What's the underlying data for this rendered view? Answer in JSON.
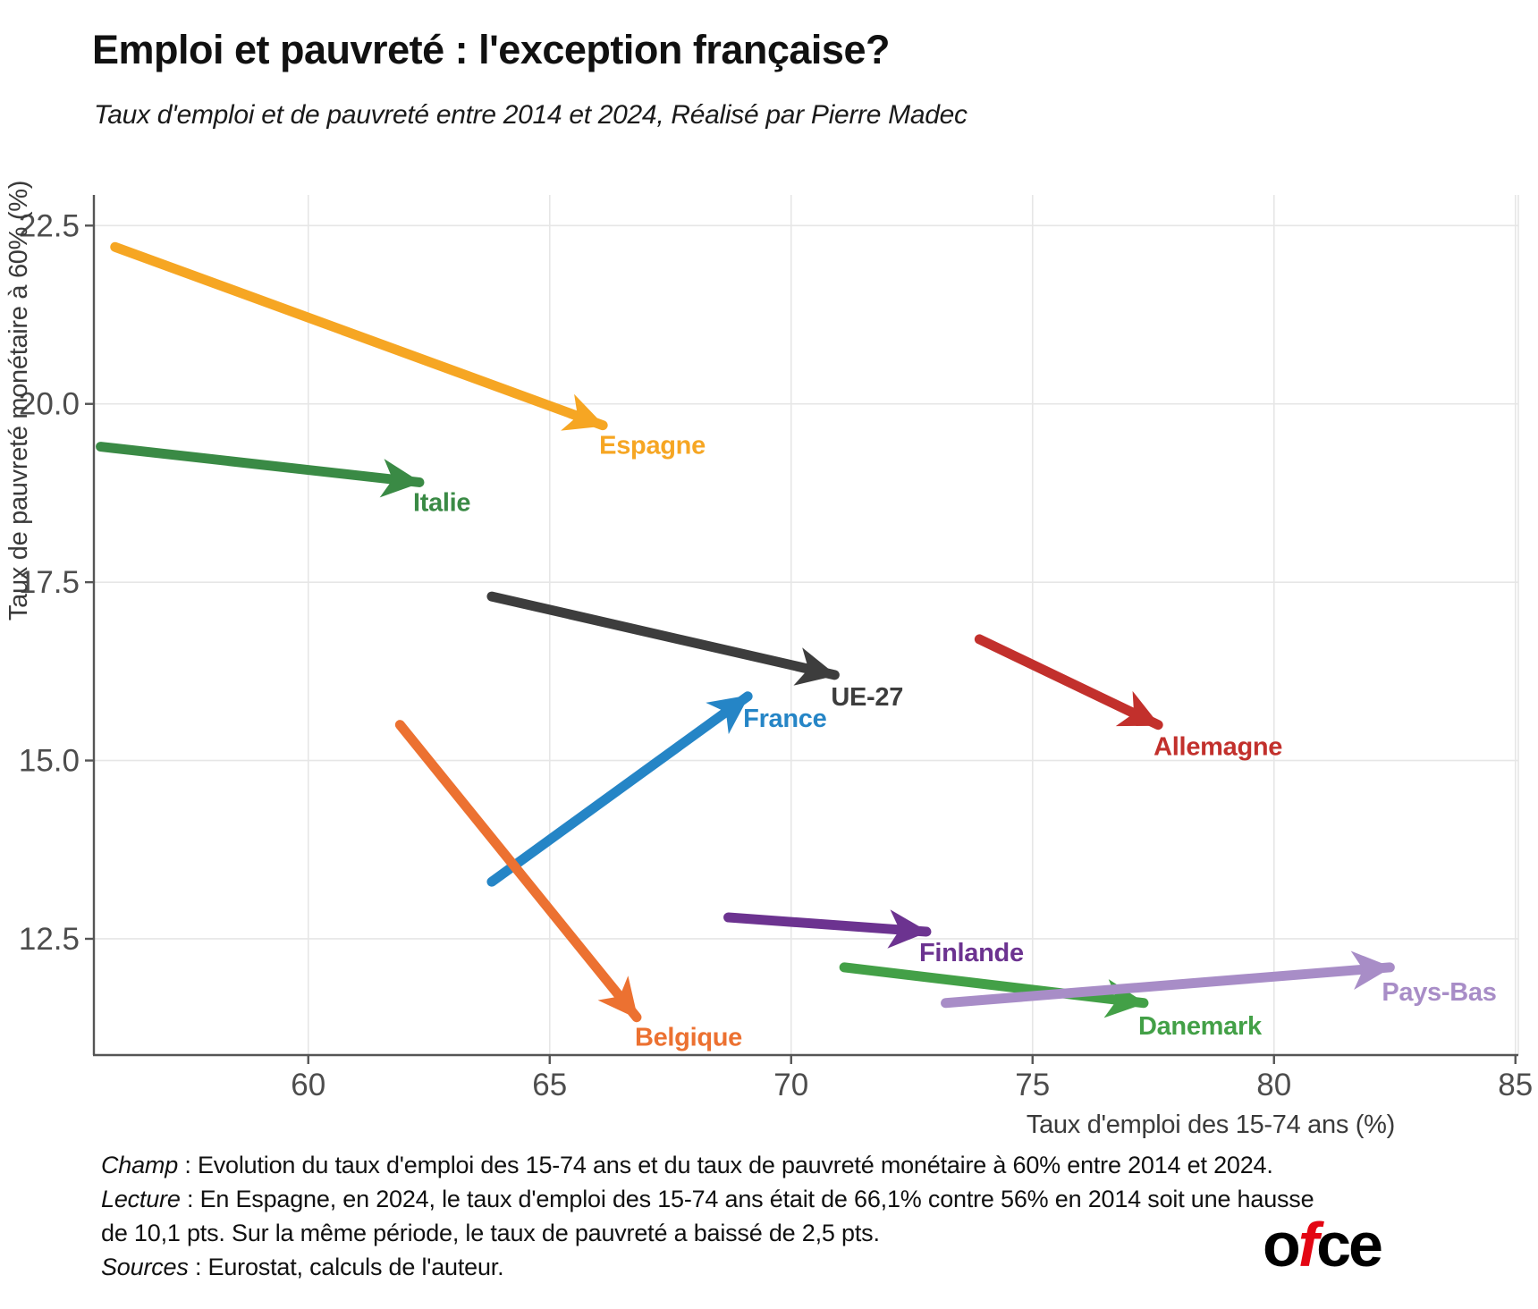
{
  "header": {
    "title": "Emploi et pauvreté : l'exception française?",
    "subtitle": "Taux d'emploi et de pauvreté entre 2014 et 2024, Réalisé par Pierre Madec"
  },
  "chart_data": {
    "type": "arrow-scatter",
    "title": "Emploi et pauvreté : l'exception française?",
    "xlabel": "Taux d'emploi des 15-74 ans (%)",
    "ylabel": "Taux de pauvreté monétaire à 60% (%)",
    "x_ticks": [
      60,
      65,
      70,
      75,
      80,
      85
    ],
    "y_ticks": [
      22.5,
      20.0,
      17.5,
      15.0,
      12.5
    ],
    "xlim": [
      55.56,
      85.06
    ],
    "ylim": [
      10.87,
      22.93
    ],
    "grid": true,
    "period": {
      "from": 2014,
      "to": 2024
    },
    "series": [
      {
        "name": "Espagne",
        "color": "#F6A623",
        "from": {
          "x": 56.0,
          "y": 22.2
        },
        "to": {
          "x": 66.1,
          "y": 19.7
        },
        "label_dx": -4,
        "label_dy": 32
      },
      {
        "name": "Italie",
        "color": "#3A8A45",
        "from": {
          "x": 55.7,
          "y": 19.4
        },
        "to": {
          "x": 62.3,
          "y": 18.9
        },
        "label_dx": -7,
        "label_dy": 32
      },
      {
        "name": "UE-27",
        "color": "#3D3D3D",
        "from": {
          "x": 63.8,
          "y": 17.3
        },
        "to": {
          "x": 70.9,
          "y": 16.2
        },
        "label_dx": -4,
        "label_dy": 34
      },
      {
        "name": "France",
        "color": "#2585C6",
        "from": {
          "x": 63.8,
          "y": 13.3
        },
        "to": {
          "x": 69.1,
          "y": 15.9
        },
        "label_dx": -5,
        "label_dy": 34
      },
      {
        "name": "Belgique",
        "color": "#EC7131",
        "from": {
          "x": 61.9,
          "y": 15.5
        },
        "to": {
          "x": 66.8,
          "y": 11.4
        },
        "label_dx": -2,
        "label_dy": 32
      },
      {
        "name": "Allemagne",
        "color": "#C2302C",
        "from": {
          "x": 73.9,
          "y": 16.7
        },
        "to": {
          "x": 77.6,
          "y": 15.5
        },
        "label_dx": -5,
        "label_dy": 34
      },
      {
        "name": "Finlande",
        "color": "#6C3390",
        "from": {
          "x": 68.7,
          "y": 12.8
        },
        "to": {
          "x": 72.8,
          "y": 12.6
        },
        "label_dx": -8,
        "label_dy": 33
      },
      {
        "name": "Danemark",
        "color": "#43A047",
        "from": {
          "x": 71.1,
          "y": 12.1
        },
        "to": {
          "x": 77.3,
          "y": 11.6
        },
        "label_dx": -6,
        "label_dy": 35
      },
      {
        "name": "Pays-Bas",
        "color": "#A88DC7",
        "from": {
          "x": 73.2,
          "y": 11.6
        },
        "to": {
          "x": 82.4,
          "y": 12.1
        },
        "label_dx": -9,
        "label_dy": 37
      }
    ]
  },
  "footer": {
    "notes": [
      {
        "lead": "Champ",
        "rest": " : Evolution du taux d'emploi des 15-74 ans et du taux de pauvreté monétaire à 60% entre 2014 et 2024."
      },
      {
        "lead": "Lecture",
        "rest": " : En Espagne, en 2024, le taux d'emploi des 15-74 ans était de 66,1% contre 56% en 2014 soit une hausse"
      },
      {
        "lead": "",
        "rest": "de 10,1 pts. Sur la même période, le taux de pauvreté a baissé de 2,5 pts."
      },
      {
        "lead": "Sources",
        "rest": " : Eurostat, calculs de l'auteur."
      }
    ],
    "logo": {
      "part1": "o",
      "part2": "f",
      "part3": "ce"
    }
  },
  "style": {
    "grid_color": "#E6E6E6",
    "spine_color": "#555555",
    "tick_text_color": "#4D4D4D",
    "axis_title_color": "#3A3A3A"
  }
}
